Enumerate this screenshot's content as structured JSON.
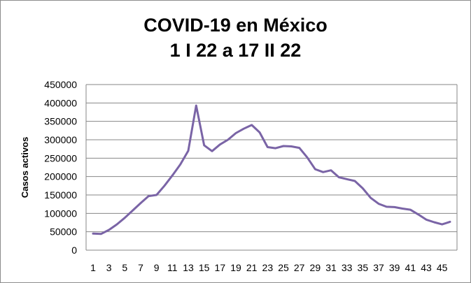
{
  "chart_data": {
    "type": "line",
    "title_line1": "COVID-19 en México",
    "title_line2": "1 I 22 a 17 II 22",
    "xlabel": "",
    "ylabel": "Casos activos",
    "ylim": [
      0,
      450000
    ],
    "yticks": [
      0,
      50000,
      100000,
      150000,
      200000,
      250000,
      300000,
      350000,
      400000,
      450000
    ],
    "ytick_labels": [
      "0",
      "50000",
      "100000",
      "150000",
      "200000",
      "250000",
      "300000",
      "350000",
      "400000",
      "450000"
    ],
    "xlim": [
      1,
      46
    ],
    "xtick_labels": [
      "1",
      "3",
      "5",
      "7",
      "9",
      "11",
      "13",
      "15",
      "17",
      "19",
      "21",
      "23",
      "25",
      "27",
      "29",
      "31",
      "33",
      "35",
      "37",
      "39",
      "41",
      "43",
      "45"
    ],
    "grid": true,
    "line_color": "#7a64a6",
    "x": [
      1,
      2,
      3,
      4,
      5,
      6,
      7,
      8,
      9,
      10,
      11,
      12,
      13,
      14,
      15,
      16,
      17,
      18,
      19,
      20,
      21,
      22,
      23,
      24,
      25,
      26,
      27,
      28,
      29,
      30,
      31,
      32,
      33,
      34,
      35,
      36,
      37,
      38,
      39,
      40,
      41,
      42,
      43,
      44,
      45,
      46
    ],
    "series": [
      {
        "values": [
          45000,
          44000,
          55000,
          70000,
          88000,
          108000,
          128000,
          147000,
          150000,
          175000,
          203000,
          233000,
          270000,
          393000,
          285000,
          269000,
          287000,
          300000,
          318000,
          330000,
          340000,
          320000,
          280000,
          277000,
          283000,
          282000,
          278000,
          252000,
          220000,
          212000,
          217000,
          198000,
          193000,
          188000,
          168000,
          142000,
          126000,
          118000,
          117000,
          113000,
          110000,
          97000,
          83000,
          76000,
          70000,
          77000
        ]
      }
    ]
  }
}
